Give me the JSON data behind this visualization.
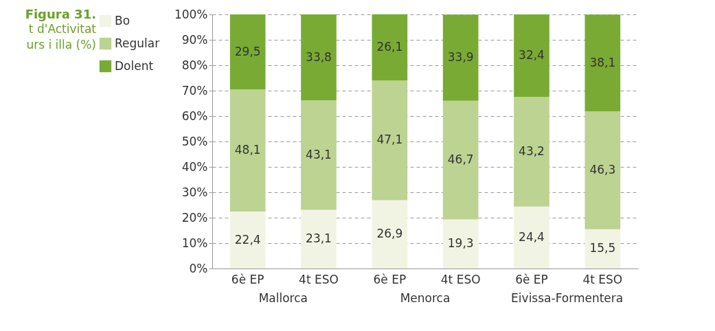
{
  "chart_data": {
    "type": "bar",
    "title": "Figura 31.",
    "subtitle": "t d'Activitat\nurs i illa (%)",
    "categories": [
      "6è EP",
      "4t ESO",
      "6è EP",
      "4t ESO",
      "6è EP",
      "4t ESO"
    ],
    "annotations": [
      "Mallorca",
      "Menorca",
      "Eivissa-Formentera"
    ],
    "stacked": true,
    "legend": "left",
    "grid": "y",
    "ylim": [
      0,
      100
    ],
    "yticks": [
      {
        "value": 0,
        "label": "0%"
      },
      {
        "value": 10,
        "label": "10%"
      },
      {
        "value": 20,
        "label": "20%"
      },
      {
        "value": 30,
        "label": "30%"
      },
      {
        "value": 40,
        "label": "40%"
      },
      {
        "value": 50,
        "label": "50%"
      },
      {
        "value": 60,
        "label": "60%"
      },
      {
        "value": 70,
        "label": "70%"
      },
      {
        "value": 80,
        "label": "80%"
      },
      {
        "value": 90,
        "label": "90%"
      },
      {
        "value": 100,
        "label": "100%"
      }
    ],
    "series": [
      {
        "name": "Bo",
        "color": "#f2f4e3",
        "values": [
          22.4,
          23.1,
          26.9,
          19.3,
          24.4,
          15.5
        ],
        "value_labels": [
          "22,4",
          "23,1",
          "26,9",
          "19,3",
          "24,4",
          "15,5"
        ]
      },
      {
        "name": "Regular",
        "color": "#bcd392",
        "values": [
          48.1,
          43.1,
          47.1,
          46.7,
          43.2,
          46.3
        ],
        "value_labels": [
          "48,1",
          "43,1",
          "47,1",
          "46,7",
          "43,2",
          "46,3"
        ]
      },
      {
        "name": "Dolent",
        "color": "#79ab34",
        "values": [
          29.5,
          33.8,
          26.1,
          33.9,
          32.4,
          38.1
        ],
        "value_labels": [
          "29,5",
          "33,8",
          "26,1",
          "33,9",
          "32,4",
          "38,1"
        ]
      }
    ]
  }
}
